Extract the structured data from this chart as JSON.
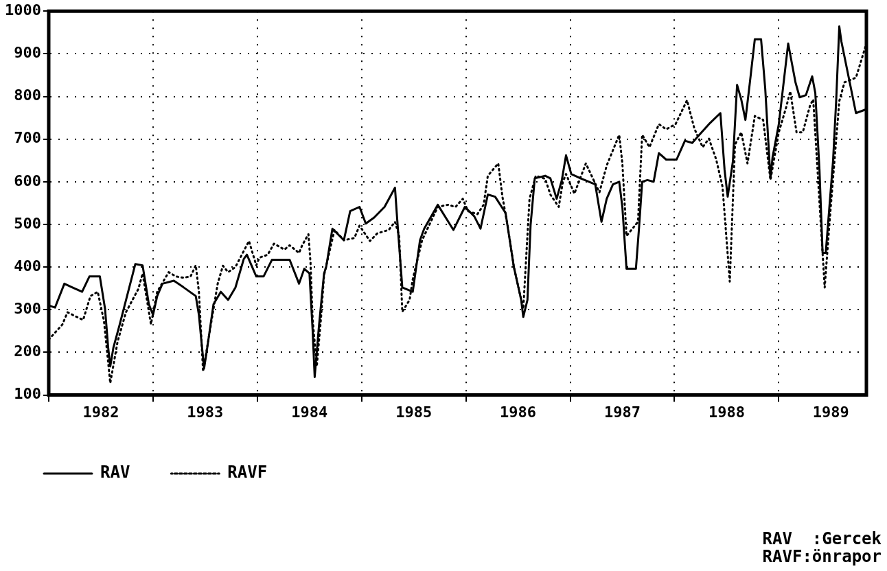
{
  "chart_data": {
    "type": "line",
    "xlim": [
      1982,
      1989.84
    ],
    "xticks": [
      {
        "value": 1982,
        "label": null
      },
      {
        "value": 1982.5,
        "label": "1982"
      },
      {
        "value": 1983,
        "label": null
      },
      {
        "value": 1983.5,
        "label": "1983"
      },
      {
        "value": 1984,
        "label": null
      },
      {
        "value": 1984.5,
        "label": "1984"
      },
      {
        "value": 1985,
        "label": null
      },
      {
        "value": 1985.5,
        "label": "1985"
      },
      {
        "value": 1986,
        "label": null
      },
      {
        "value": 1986.5,
        "label": "1986"
      },
      {
        "value": 1987,
        "label": null
      },
      {
        "value": 1987.5,
        "label": "1987"
      },
      {
        "value": 1988,
        "label": null
      },
      {
        "value": 1988.5,
        "label": "1988"
      },
      {
        "value": 1989,
        "label": null
      },
      {
        "value": 1989.5,
        "label": "1989"
      }
    ],
    "ylim": [
      100,
      1000
    ],
    "yticks": [
      100,
      200,
      300,
      400,
      500,
      600,
      700,
      800,
      900,
      1000
    ],
    "grid": true,
    "legend": "bottom",
    "marker": "none",
    "annotations": [
      "RAV  :Gercek",
      "RAVF:önrapor"
    ],
    "series": [
      {
        "name": "RAV",
        "color": "#000000",
        "line_style": "solid",
        "x": [
          1982.0,
          1982.06,
          1982.15,
          1982.22,
          1982.32,
          1982.39,
          1982.49,
          1982.54,
          1982.57,
          1982.59,
          1982.62,
          1982.68,
          1982.83,
          1982.9,
          1982.96,
          1983.0,
          1983.04,
          1983.09,
          1983.2,
          1983.29,
          1983.41,
          1983.44,
          1983.47,
          1983.49,
          1983.52,
          1983.58,
          1983.65,
          1983.72,
          1983.79,
          1983.87,
          1983.9,
          1983.99,
          1984.06,
          1984.14,
          1984.31,
          1984.4,
          1984.45,
          1984.5,
          1984.53,
          1984.55,
          1984.59,
          1984.64,
          1984.66,
          1984.72,
          1984.83,
          1984.89,
          1984.98,
          1985.04,
          1985.12,
          1985.22,
          1985.32,
          1985.34,
          1985.39,
          1985.49,
          1985.56,
          1985.6,
          1985.73,
          1985.88,
          1985.99,
          1986.08,
          1986.14,
          1986.21,
          1986.28,
          1986.38,
          1986.46,
          1986.53,
          1986.55,
          1986.59,
          1986.62,
          1986.66,
          1986.76,
          1986.81,
          1986.87,
          1986.92,
          1986.96,
          1987.01,
          1987.1,
          1987.24,
          1987.3,
          1987.35,
          1987.41,
          1987.47,
          1987.5,
          1987.54,
          1987.63,
          1987.66,
          1987.69,
          1987.74,
          1987.8,
          1987.85,
          1987.92,
          1988.02,
          1988.1,
          1988.17,
          1988.26,
          1988.33,
          1988.44,
          1988.48,
          1988.51,
          1988.56,
          1988.6,
          1988.64,
          1988.68,
          1988.72,
          1988.77,
          1988.83,
          1988.87,
          1988.92,
          1988.94,
          1989.0,
          1989.09,
          1989.16,
          1989.2,
          1989.26,
          1989.32,
          1989.35,
          1989.39,
          1989.42,
          1989.45,
          1989.52,
          1989.55,
          1989.58,
          1989.6,
          1989.74,
          1989.83
        ],
        "values": [
          310,
          305,
          361,
          353,
          342,
          378,
          378,
          302,
          211,
          167,
          211,
          265,
          407,
          404,
          313,
          288,
          332,
          361,
          368,
          353,
          332,
          288,
          211,
          163,
          211,
          313,
          342,
          323,
          352,
          419,
          429,
          378,
          378,
          417,
          417,
          361,
          396,
          385,
          254,
          142,
          259,
          385,
          400,
          490,
          463,
          531,
          541,
          502,
          516,
          541,
          586,
          516,
          352,
          342,
          463,
          490,
          546,
          487,
          541,
          519,
          490,
          570,
          565,
          527,
          400,
          323,
          283,
          323,
          498,
          608,
          614,
          608,
          560,
          604,
          662,
          618,
          608,
          594,
          506,
          560,
          594,
          600,
          541,
          396,
          396,
          492,
          600,
          604,
          600,
          667,
          652,
          652,
          696,
          691,
          716,
          735,
          761,
          628,
          565,
          648,
          827,
          793,
          745,
          827,
          934,
          934,
          818,
          608,
          657,
          735,
          924,
          833,
          798,
          803,
          847,
          808,
          628,
          433,
          433,
          648,
          789,
          964,
          929,
          761,
          769
        ]
      },
      {
        "name": "RAVF",
        "color": "#000000",
        "line_style": "dotted",
        "x": [
          1982.0,
          1982.13,
          1982.18,
          1982.27,
          1982.33,
          1982.4,
          1982.47,
          1982.53,
          1982.59,
          1982.66,
          1982.74,
          1982.86,
          1982.9,
          1982.98,
          1983.04,
          1983.15,
          1983.22,
          1983.29,
          1983.36,
          1983.41,
          1983.44,
          1983.48,
          1983.62,
          1983.67,
          1983.72,
          1983.79,
          1983.86,
          1983.92,
          1983.99,
          1984.02,
          1984.1,
          1984.16,
          1984.26,
          1984.31,
          1984.4,
          1984.43,
          1984.49,
          1984.51,
          1984.53,
          1984.57,
          1984.61,
          1984.64,
          1984.74,
          1984.83,
          1984.93,
          1984.98,
          1985.08,
          1985.15,
          1985.26,
          1985.32,
          1985.36,
          1985.39,
          1985.46,
          1985.49,
          1985.58,
          1985.73,
          1985.83,
          1985.9,
          1985.97,
          1986.02,
          1986.11,
          1986.17,
          1986.21,
          1986.31,
          1986.35,
          1986.4,
          1986.46,
          1986.55,
          1986.61,
          1986.67,
          1986.76,
          1986.81,
          1986.89,
          1986.93,
          1986.96,
          1987.04,
          1987.15,
          1987.28,
          1987.35,
          1987.47,
          1987.5,
          1987.54,
          1987.65,
          1987.69,
          1987.76,
          1987.85,
          1987.92,
          1988.01,
          1988.12,
          1988.19,
          1988.27,
          1988.33,
          1988.4,
          1988.46,
          1988.53,
          1988.58,
          1988.64,
          1988.7,
          1988.77,
          1988.85,
          1988.92,
          1989.0,
          1989.07,
          1989.11,
          1989.17,
          1989.23,
          1989.3,
          1989.33,
          1989.44,
          1989.49,
          1989.58,
          1989.63,
          1989.74,
          1989.81,
          1989.84
        ],
        "values": [
          230,
          265,
          294,
          283,
          276,
          332,
          342,
          273,
          128,
          225,
          294,
          349,
          385,
          266,
          342,
          388,
          378,
          375,
          378,
          404,
          342,
          155,
          361,
          403,
          388,
          400,
          433,
          461,
          404,
          422,
          429,
          455,
          441,
          451,
          433,
          451,
          477,
          410,
          279,
          167,
          279,
          381,
          487,
          463,
          468,
          497,
          461,
          479,
          487,
          506,
          473,
          295,
          323,
          371,
          463,
          541,
          546,
          541,
          560,
          531,
          524,
          546,
          614,
          643,
          565,
          497,
          400,
          302,
          560,
          614,
          607,
          570,
          541,
          600,
          618,
          572,
          643,
          575,
          638,
          710,
          643,
          473,
          506,
          710,
          681,
          735,
          723,
          735,
          791,
          725,
          681,
          701,
          652,
          589,
          366,
          687,
          716,
          643,
          754,
          745,
          604,
          716,
          774,
          812,
          716,
          716,
          779,
          793,
          352,
          516,
          789,
          833,
          844,
          900,
          924
        ]
      }
    ]
  }
}
